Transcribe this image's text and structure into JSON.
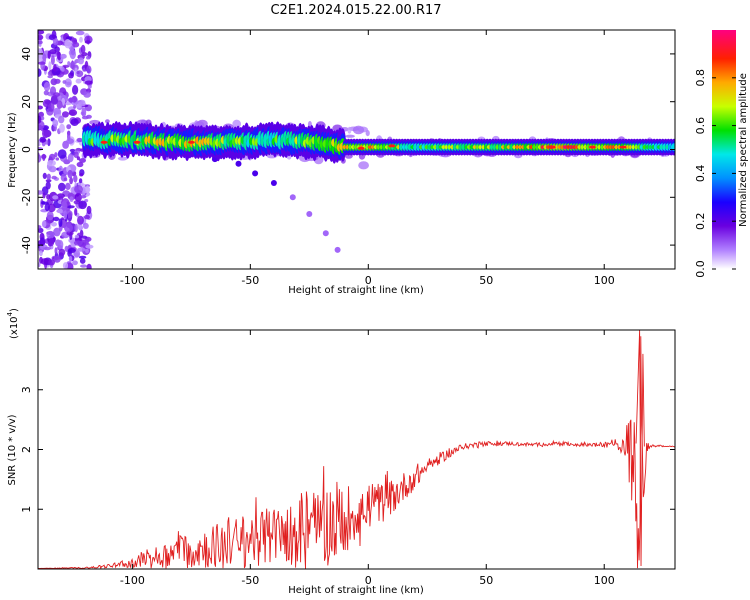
{
  "title": "C2E1.2024.015.22.00.R17",
  "chart_data": [
    {
      "type": "heatmap",
      "xlabel": "Height of straight line (km)",
      "ylabel": "Frequency (Hz)",
      "xlim": [
        -140,
        130
      ],
      "ylim": [
        -50,
        50
      ],
      "x_ticks": [
        -100,
        -50,
        0,
        50,
        100
      ],
      "y_ticks": [
        -40,
        -20,
        0,
        20,
        40
      ],
      "colorbar": {
        "label": "Normalized spectral amplitude",
        "range": [
          0.0,
          1.0
        ],
        "ticks": [
          0.0,
          0.2,
          0.4,
          0.6,
          0.8
        ],
        "tick_labels": [
          "0.0",
          "0.2",
          "0.4",
          "0.6",
          "0.8"
        ],
        "colors": [
          "#ffffff",
          "#6a00e0",
          "#1a00ff",
          "#0090ff",
          "#00e8e8",
          "#00e000",
          "#c8ff00",
          "#ffaa00",
          "#ff2000",
          "#ff0080"
        ]
      },
      "band": {
        "description_values": "dominant frequency ridge (Hz) vs height (km)",
        "x": [
          -120,
          -100,
          -80,
          -60,
          -40,
          -20,
          -10,
          0,
          20,
          40,
          60,
          80,
          100,
          110,
          120,
          130
        ],
        "center_freq": [
          4,
          4,
          3,
          3,
          4,
          3,
          1,
          1,
          1,
          1,
          1,
          1,
          1,
          1,
          1,
          1
        ],
        "peak_amplitude": [
          0.6,
          0.7,
          0.8,
          0.7,
          0.6,
          0.8,
          0.85,
          0.9,
          0.6,
          0.7,
          0.75,
          0.95,
          0.85,
          0.8,
          0.6,
          0.5
        ]
      },
      "diagonal_trace": {
        "x": [
          -75,
          -65,
          -55,
          -48,
          -40,
          -32,
          -25,
          -18,
          -13
        ],
        "y": [
          -2,
          -4,
          -6,
          -10,
          -14,
          -20,
          -27,
          -35,
          -42
        ]
      }
    },
    {
      "type": "line",
      "xlabel": "Height of straight line (km)",
      "ylabel": "SNR (10 * v/v)",
      "y_multiplier_label": "(x10",
      "y_multiplier_exp": "4",
      "y_multiplier_close": ")",
      "xlim": [
        -140,
        130
      ],
      "ylim": [
        0,
        4
      ],
      "x_ticks": [
        -100,
        -50,
        0,
        50,
        100
      ],
      "y_ticks": [
        1,
        2,
        3
      ],
      "series": [
        {
          "color": "#e02020",
          "envelope": {
            "x": [
              -140,
              -120,
              -110,
              -100,
              -90,
              -80,
              -70,
              -60,
              -50,
              -40,
              -30,
              -20,
              -15,
              -10,
              -5,
              0,
              5,
              10,
              20,
              30,
              40,
              50,
              60,
              70,
              80,
              90,
              100,
              105,
              108,
              110,
              112,
              114,
              116,
              118,
              120,
              130
            ],
            "mean": [
              0.01,
              0.02,
              0.05,
              0.1,
              0.2,
              0.3,
              0.35,
              0.42,
              0.5,
              0.55,
              0.62,
              0.7,
              0.8,
              0.85,
              0.95,
              1.05,
              1.1,
              1.2,
              1.55,
              1.85,
              2.05,
              2.1,
              2.1,
              2.08,
              2.1,
              2.08,
              2.08,
              2.1,
              2.05,
              2.1,
              1.9,
              1.5,
              1.8,
              2.05,
              2.06,
              2.05
            ],
            "noise": [
              0.0,
              0.01,
              0.03,
              0.08,
              0.18,
              0.28,
              0.35,
              0.4,
              0.45,
              0.5,
              0.55,
              0.65,
              0.75,
              0.6,
              0.45,
              0.4,
              0.35,
              0.3,
              0.2,
              0.1,
              0.05,
              0.04,
              0.03,
              0.03,
              0.03,
              0.03,
              0.04,
              0.06,
              0.15,
              0.4,
              1.2,
              1.8,
              1.4,
              0.1,
              0.02,
              0.01
            ]
          }
        }
      ]
    }
  ]
}
